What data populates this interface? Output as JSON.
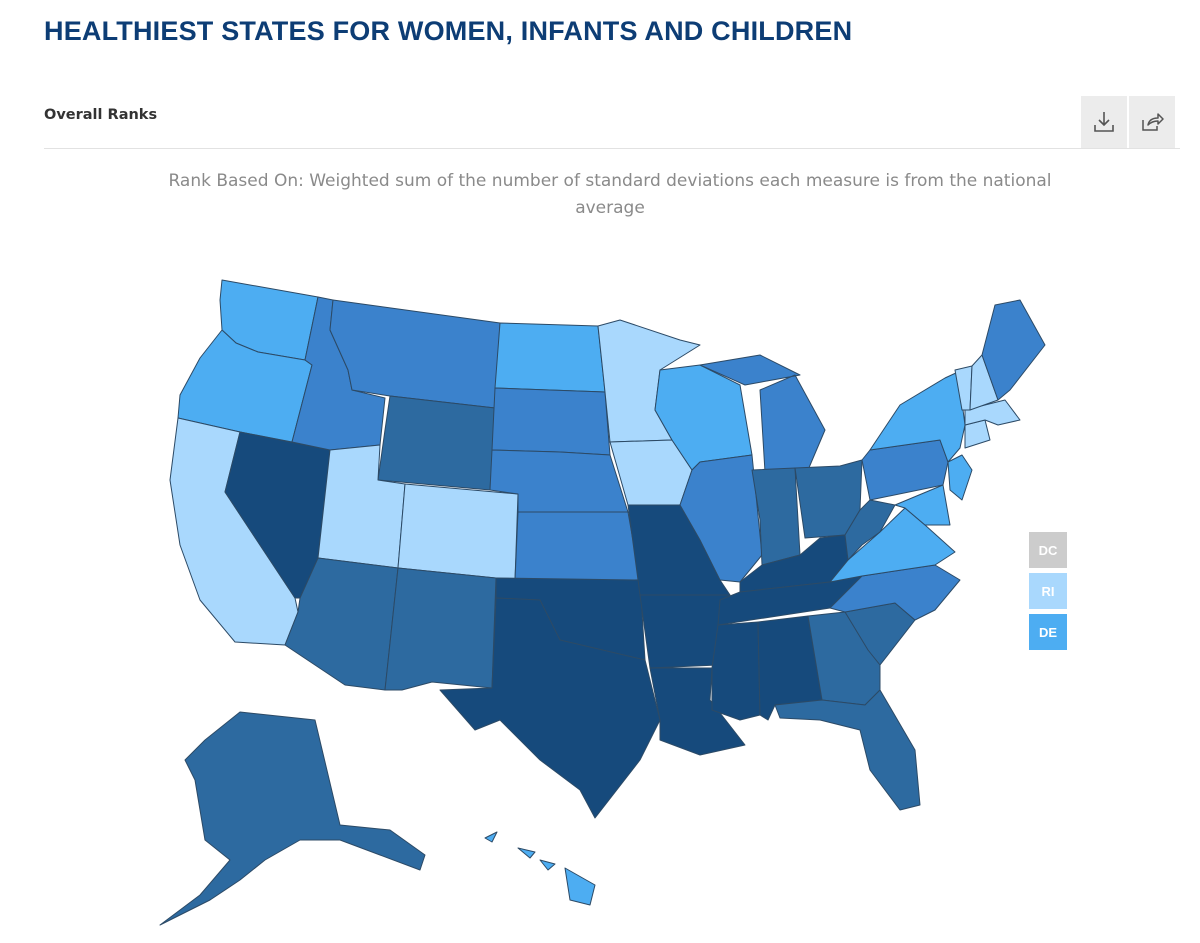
{
  "header": {
    "title": "HEALTHIEST STATES FOR WOMEN, INFANTS AND CHILDREN",
    "subtitle": "Overall Ranks",
    "rank_basis": "Rank Based On: Weighted sum of the number of standard deviations each measure is from the national average"
  },
  "toolbar": {
    "download_icon": "download-icon",
    "share_icon": "share-icon"
  },
  "legend_palette": {
    "tier1": "#a9d8fd",
    "tier2": "#4dadf2",
    "tier3": "#3b82cc",
    "tier4": "#2d6aa0",
    "tier5": "#164a7c",
    "no_data": "#cccccc"
  },
  "small_states": [
    {
      "code": "DC",
      "tier": "no_data"
    },
    {
      "code": "RI",
      "tier": "tier1"
    },
    {
      "code": "DE",
      "tier": "tier2"
    }
  ],
  "states": [
    {
      "code": "WA",
      "tier": "tier2"
    },
    {
      "code": "OR",
      "tier": "tier2"
    },
    {
      "code": "CA",
      "tier": "tier1"
    },
    {
      "code": "NV",
      "tier": "tier5"
    },
    {
      "code": "ID",
      "tier": "tier3"
    },
    {
      "code": "MT",
      "tier": "tier3"
    },
    {
      "code": "WY",
      "tier": "tier4"
    },
    {
      "code": "UT",
      "tier": "tier1"
    },
    {
      "code": "CO",
      "tier": "tier1"
    },
    {
      "code": "AZ",
      "tier": "tier4"
    },
    {
      "code": "NM",
      "tier": "tier4"
    },
    {
      "code": "ND",
      "tier": "tier2"
    },
    {
      "code": "SD",
      "tier": "tier3"
    },
    {
      "code": "NE",
      "tier": "tier3"
    },
    {
      "code": "KS",
      "tier": "tier3"
    },
    {
      "code": "OK",
      "tier": "tier5"
    },
    {
      "code": "TX",
      "tier": "tier5"
    },
    {
      "code": "MN",
      "tier": "tier1"
    },
    {
      "code": "IA",
      "tier": "tier1"
    },
    {
      "code": "MO",
      "tier": "tier5"
    },
    {
      "code": "AR",
      "tier": "tier5"
    },
    {
      "code": "LA",
      "tier": "tier5"
    },
    {
      "code": "WI",
      "tier": "tier2"
    },
    {
      "code": "IL",
      "tier": "tier3"
    },
    {
      "code": "MI",
      "tier": "tier3"
    },
    {
      "code": "IN",
      "tier": "tier4"
    },
    {
      "code": "OH",
      "tier": "tier4"
    },
    {
      "code": "KY",
      "tier": "tier5"
    },
    {
      "code": "TN",
      "tier": "tier5"
    },
    {
      "code": "MS",
      "tier": "tier5"
    },
    {
      "code": "AL",
      "tier": "tier5"
    },
    {
      "code": "GA",
      "tier": "tier4"
    },
    {
      "code": "FL",
      "tier": "tier4"
    },
    {
      "code": "SC",
      "tier": "tier4"
    },
    {
      "code": "NC",
      "tier": "tier3"
    },
    {
      "code": "VA",
      "tier": "tier2"
    },
    {
      "code": "WV",
      "tier": "tier4"
    },
    {
      "code": "PA",
      "tier": "tier3"
    },
    {
      "code": "NY",
      "tier": "tier2"
    },
    {
      "code": "NJ",
      "tier": "tier2"
    },
    {
      "code": "MD",
      "tier": "tier2"
    },
    {
      "code": "CT",
      "tier": "tier1"
    },
    {
      "code": "MA",
      "tier": "tier1"
    },
    {
      "code": "VT",
      "tier": "tier1"
    },
    {
      "code": "NH",
      "tier": "tier1"
    },
    {
      "code": "ME",
      "tier": "tier3"
    },
    {
      "code": "AK",
      "tier": "tier4"
    },
    {
      "code": "HI",
      "tier": "tier2"
    }
  ]
}
